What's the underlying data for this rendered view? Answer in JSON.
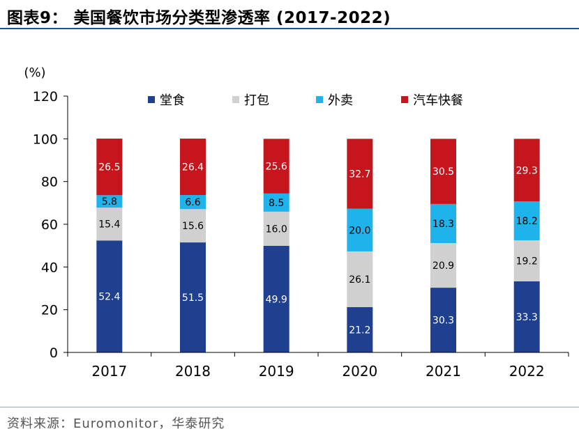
{
  "title": "图表9：  美国餐饮市场分类型渗透率 (2017-2022)",
  "source": "资料来源：Euromonitor，华泰研究",
  "chart_data": {
    "type": "bar",
    "stacked": true,
    "ylabel": "(%)",
    "ylim": [
      0,
      120
    ],
    "yticks": [
      0,
      20,
      40,
      60,
      80,
      100,
      120
    ],
    "grid": false,
    "legend_position": "top",
    "categories": [
      "2017",
      "2018",
      "2019",
      "2020",
      "2021",
      "2022"
    ],
    "series": [
      {
        "name": "堂食",
        "color": "#1f3f8f",
        "label_color": "#ffffff",
        "values": [
          52.4,
          51.5,
          49.9,
          21.2,
          30.3,
          33.3
        ]
      },
      {
        "name": "打包",
        "color": "#d0d0d0",
        "label_color": "#000000",
        "values": [
          15.4,
          15.6,
          16.0,
          26.1,
          20.9,
          19.2
        ]
      },
      {
        "name": "外卖",
        "color": "#1eb3ea",
        "label_color": "#000000",
        "values": [
          5.8,
          6.6,
          8.5,
          20.0,
          18.3,
          18.2
        ]
      },
      {
        "name": "汽车快餐",
        "color": "#c4161c",
        "label_color": "#ffffff",
        "values": [
          26.5,
          26.4,
          25.6,
          32.7,
          30.5,
          29.3
        ]
      }
    ]
  }
}
